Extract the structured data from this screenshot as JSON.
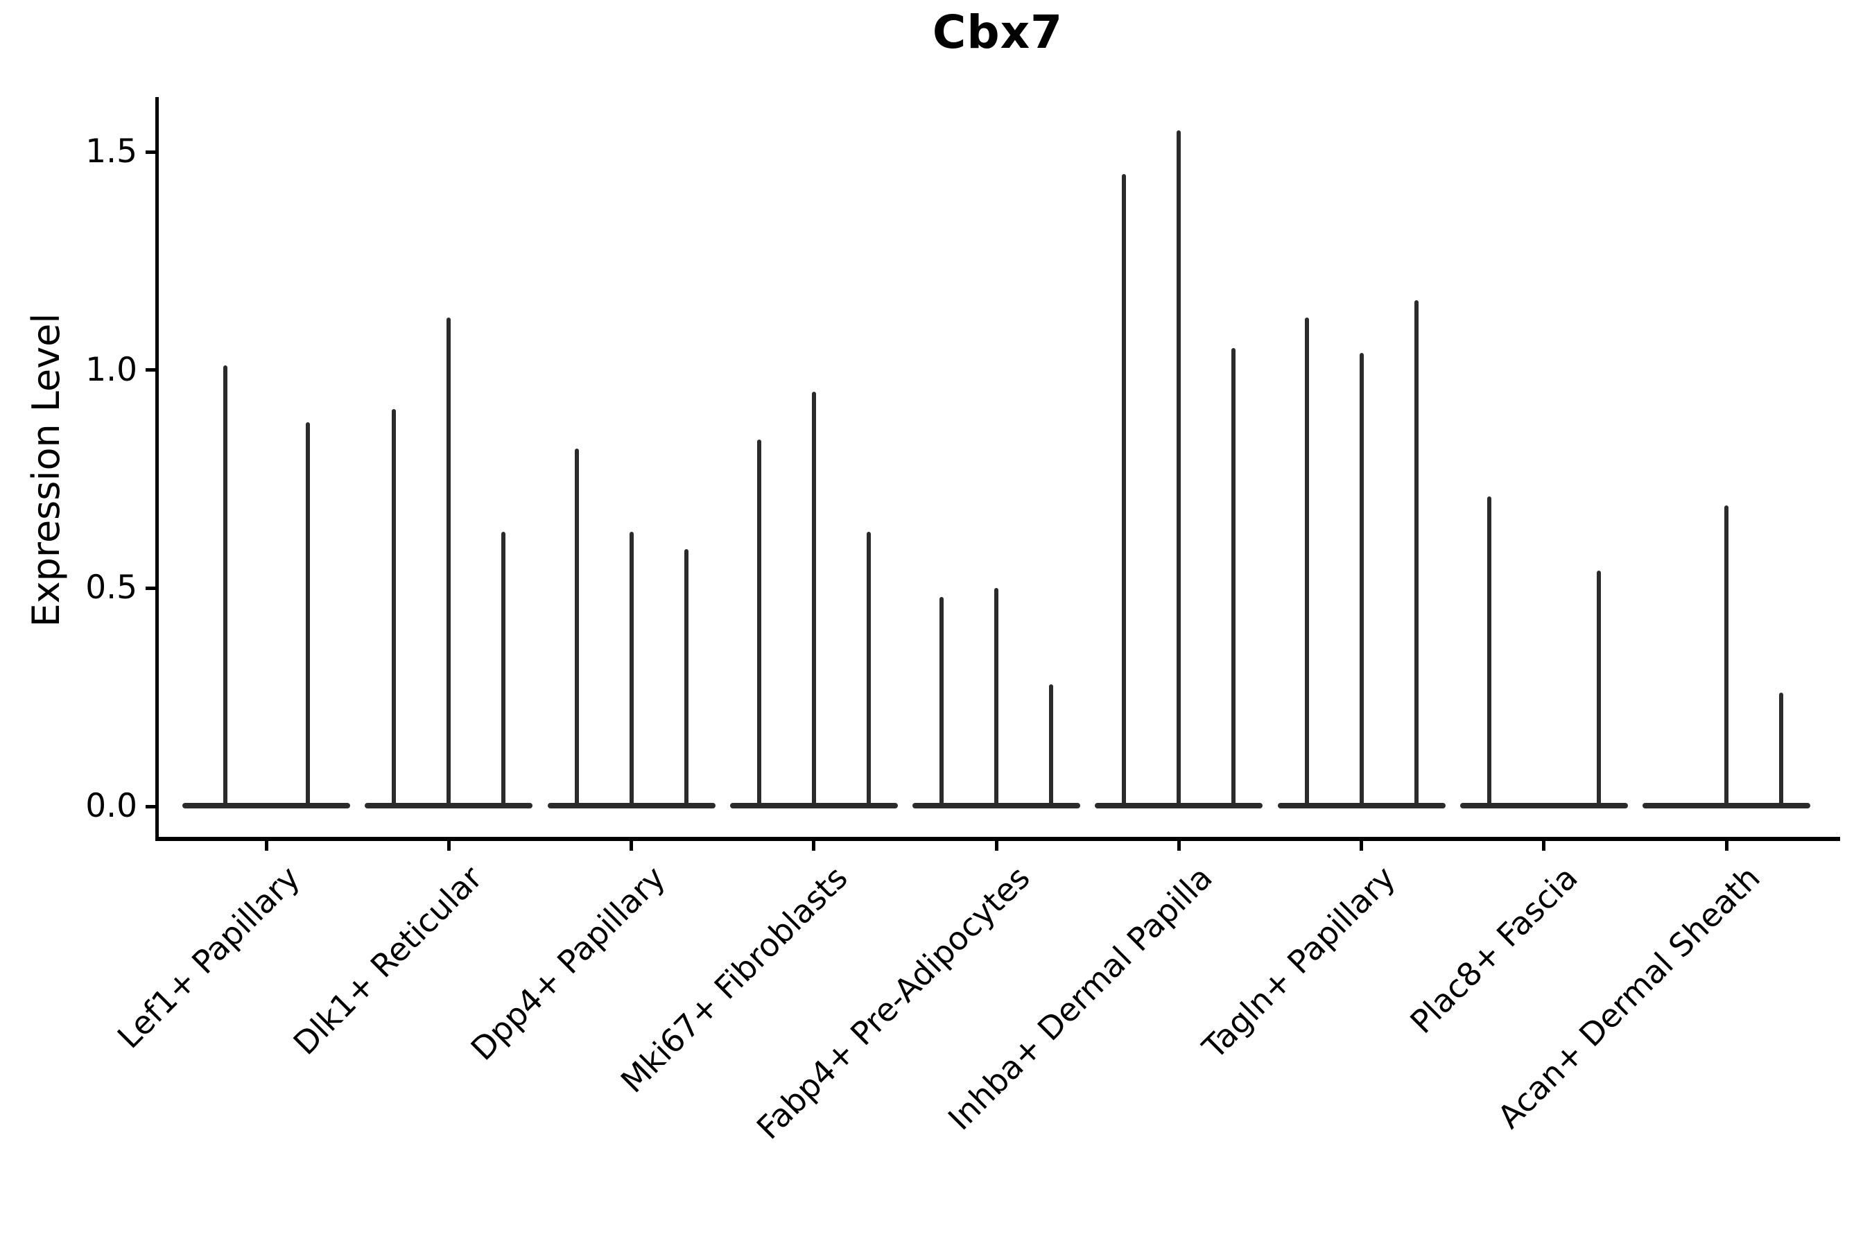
{
  "title": "Cbx7",
  "y_axis": {
    "label": "Expression Level",
    "tick_labels": [
      "0.0",
      "0.5",
      "1.0",
      "1.5"
    ]
  },
  "colors": {
    "background": "#ffffff",
    "axis": "#000000",
    "text": "#000000",
    "violin": "#2b2b2b"
  },
  "chart_data": {
    "type": "violin",
    "title": "Cbx7",
    "xlabel": "",
    "ylabel": "Expression Level",
    "ylim": [
      -0.075,
      1.63
    ],
    "yticks": [
      0.0,
      0.5,
      1.0,
      1.5
    ],
    "grid": false,
    "legend": "none",
    "description": "Needle-thin violin plots of Cbx7 expression per fibroblast cluster; each cluster shows 2-3 sub-violins whose density is concentrated at 0 (flat base bar) with a thin spike reaching the maximum expression value.",
    "categories": [
      "Lef1+ Papillary",
      "Dlk1+ Reticular",
      "Dpp4+ Papillary",
      "Mki67+ Fibroblasts",
      "Fabp4+ Pre-Adipocytes",
      "Inhba+ Dermal Papilla",
      "Tagln+ Papillary",
      "Plac8+ Fascia",
      "Acan+ Dermal Sheath"
    ],
    "groups": [
      {
        "category": "Lef1+ Papillary",
        "violins": [
          {
            "dx": -59.5,
            "max": 1.01
          },
          {
            "dx": 59.5,
            "max": 0.88
          }
        ]
      },
      {
        "category": "Dlk1+ Reticular",
        "violins": [
          {
            "dx": -79,
            "max": 0.91
          },
          {
            "dx": 0,
            "max": 1.12
          },
          {
            "dx": 79,
            "max": 0.63
          }
        ]
      },
      {
        "category": "Dpp4+ Papillary",
        "violins": [
          {
            "dx": -79,
            "max": 0.82
          },
          {
            "dx": 0,
            "max": 0.63
          },
          {
            "dx": 79,
            "max": 0.59
          }
        ]
      },
      {
        "category": "Mki67+ Fibroblasts",
        "violins": [
          {
            "dx": -79,
            "max": 0.84
          },
          {
            "dx": 0,
            "max": 0.95
          },
          {
            "dx": 79,
            "max": 0.63
          }
        ]
      },
      {
        "category": "Fabp4+ Pre-Adipocytes",
        "violins": [
          {
            "dx": -79,
            "max": 0.48
          },
          {
            "dx": 0,
            "max": 0.5
          },
          {
            "dx": 79,
            "max": 0.28
          }
        ]
      },
      {
        "category": "Inhba+ Dermal Papilla",
        "violins": [
          {
            "dx": -79,
            "max": 1.45
          },
          {
            "dx": 0,
            "max": 1.55
          },
          {
            "dx": 79,
            "max": 1.05
          }
        ]
      },
      {
        "category": "Tagln+ Papillary",
        "violins": [
          {
            "dx": -79,
            "max": 1.12
          },
          {
            "dx": 0,
            "max": 1.04
          },
          {
            "dx": 79,
            "max": 1.16
          }
        ]
      },
      {
        "category": "Plac8+ Fascia",
        "violins": [
          {
            "dx": -79,
            "max": 0.71
          },
          {
            "dx": 79,
            "max": 0.54
          }
        ]
      },
      {
        "category": "Acan+ Dermal Sheath",
        "violins": [
          {
            "dx": 0,
            "max": 0.69
          },
          {
            "dx": 79,
            "max": 0.26
          }
        ]
      }
    ]
  }
}
